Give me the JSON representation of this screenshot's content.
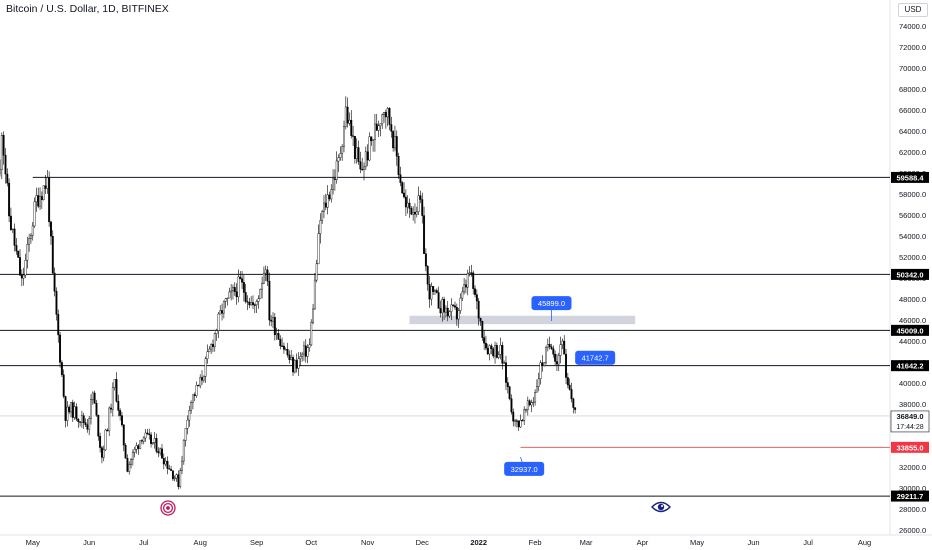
{
  "header": {
    "title": "Bitcoin / U.S. Dollar, 1D, BITFINEX",
    "currency": "USD"
  },
  "chart_data": {
    "type": "candlestick",
    "title": "Bitcoin / U.S. Dollar, 1D, BITFINEX",
    "y_unit": "USD",
    "ylim": [
      25500,
      76500
    ],
    "y_ticks": [
      "26000.0",
      "28000.0",
      "30000.0",
      "32000.0",
      "34000.0",
      "36000.0",
      "38000.0",
      "40000.0",
      "42000.0",
      "44000.0",
      "46000.0",
      "48000.0",
      "50000.0",
      "52000.0",
      "54000.0",
      "56000.0",
      "58000.0",
      "60000.0",
      "62000.0",
      "64000.0",
      "66000.0",
      "68000.0",
      "70000.0",
      "72000.0",
      "74000.0"
    ],
    "x_ticks": [
      {
        "label": "May",
        "date": "2021-05-01"
      },
      {
        "label": "Jun",
        "date": "2021-06-01"
      },
      {
        "label": "Jul",
        "date": "2021-07-01"
      },
      {
        "label": "Aug",
        "date": "2021-08-01"
      },
      {
        "label": "Sep",
        "date": "2021-09-01"
      },
      {
        "label": "Oct",
        "date": "2021-10-01"
      },
      {
        "label": "Nov",
        "date": "2021-11-01"
      },
      {
        "label": "Dec",
        "date": "2021-12-01"
      },
      {
        "label": "2022",
        "date": "2022-01-01",
        "bold": true
      },
      {
        "label": "Feb",
        "date": "2022-02-01"
      },
      {
        "label": "Mar",
        "date": "2022-03-01"
      },
      {
        "label": "Apr",
        "date": "2022-04-01"
      },
      {
        "label": "May",
        "date": "2022-05-01"
      },
      {
        "label": "Jun",
        "date": "2022-06-01"
      },
      {
        "label": "Jul",
        "date": "2022-07-01"
      },
      {
        "label": "Aug",
        "date": "2022-08-01"
      }
    ],
    "date_range": [
      "2021-04-13",
      "2022-08-15"
    ],
    "candles_range": [
      "2021-04-13",
      "2022-02-23"
    ],
    "price_path": [
      {
        "date": "2021-04-13",
        "price": 60000
      },
      {
        "date": "2021-04-14",
        "price": 64500
      },
      {
        "date": "2021-04-18",
        "price": 56000
      },
      {
        "date": "2021-04-25",
        "price": 49500
      },
      {
        "date": "2021-05-03",
        "price": 57500
      },
      {
        "date": "2021-05-09",
        "price": 59200
      },
      {
        "date": "2021-05-12",
        "price": 50000
      },
      {
        "date": "2021-05-19",
        "price": 37000
      },
      {
        "date": "2021-05-22",
        "price": 37500
      },
      {
        "date": "2021-05-31",
        "price": 36000
      },
      {
        "date": "2021-06-03",
        "price": 39000
      },
      {
        "date": "2021-06-08",
        "price": 33000
      },
      {
        "date": "2021-06-15",
        "price": 40000
      },
      {
        "date": "2021-06-22",
        "price": 32000
      },
      {
        "date": "2021-06-30",
        "price": 35000
      },
      {
        "date": "2021-07-08",
        "price": 34000
      },
      {
        "date": "2021-07-20",
        "price": 30500
      },
      {
        "date": "2021-07-26",
        "price": 38000
      },
      {
        "date": "2021-08-01",
        "price": 40000
      },
      {
        "date": "2021-08-13",
        "price": 47000
      },
      {
        "date": "2021-08-23",
        "price": 49500
      },
      {
        "date": "2021-08-31",
        "price": 47000
      },
      {
        "date": "2021-09-06",
        "price": 51500
      },
      {
        "date": "2021-09-08",
        "price": 46500
      },
      {
        "date": "2021-09-21",
        "price": 41500
      },
      {
        "date": "2021-09-30",
        "price": 43500
      },
      {
        "date": "2021-10-06",
        "price": 55500
      },
      {
        "date": "2021-10-16",
        "price": 61000
      },
      {
        "date": "2021-10-20",
        "price": 66000
      },
      {
        "date": "2021-10-28",
        "price": 60000
      },
      {
        "date": "2021-11-10",
        "price": 66500
      },
      {
        "date": "2021-11-14",
        "price": 64500
      },
      {
        "date": "2021-11-22",
        "price": 56500
      },
      {
        "date": "2021-11-30",
        "price": 57000
      },
      {
        "date": "2021-12-04",
        "price": 49000
      },
      {
        "date": "2021-12-13",
        "price": 47000
      },
      {
        "date": "2021-12-20",
        "price": 46500
      },
      {
        "date": "2021-12-27",
        "price": 50500
      },
      {
        "date": "2022-01-05",
        "price": 43500
      },
      {
        "date": "2022-01-13",
        "price": 43000
      },
      {
        "date": "2022-01-21",
        "price": 36000
      },
      {
        "date": "2022-01-24",
        "price": 36500
      },
      {
        "date": "2022-01-31",
        "price": 38500
      },
      {
        "date": "2022-02-04",
        "price": 41500
      },
      {
        "date": "2022-02-10",
        "price": 44000
      },
      {
        "date": "2022-02-13",
        "price": 42000
      },
      {
        "date": "2022-02-16",
        "price": 44500
      },
      {
        "date": "2022-02-18",
        "price": 40000
      },
      {
        "date": "2022-02-23",
        "price": 37500
      }
    ],
    "levels": [
      {
        "price": 59588.4,
        "label": "59588.4",
        "color": "#131722",
        "start_date": "2021-05-01"
      },
      {
        "price": 50342.0,
        "label": "50342.0",
        "color": "#131722",
        "start_date": "2021-04-13"
      },
      {
        "price": 45009.0,
        "label": "45009.0",
        "color": "#131722",
        "start_date": "2021-04-13"
      },
      {
        "price": 41642.2,
        "label": "41642.2",
        "color": "#131722",
        "start_date": "2021-04-13"
      },
      {
        "price": 29211.7,
        "label": "29211.7",
        "color": "#131722",
        "start_date": "2021-04-13"
      },
      {
        "price": 33855.0,
        "label": "33855.0",
        "color": "#e06666",
        "start_date": "2022-01-24",
        "label_bg": "#f23645"
      }
    ],
    "last_price": {
      "price": 36849.0,
      "label": "36849.0",
      "countdown": "17:44:28"
    },
    "zone": {
      "start_date": "2021-11-24",
      "end_date": "2022-03-28",
      "low": 45600,
      "high": 46400,
      "color": "#d1d4dc"
    },
    "annotations": [
      {
        "text": "45899.0",
        "date": "2022-02-10",
        "price": 47600,
        "point_date": "2022-02-10",
        "point_price": 45899
      },
      {
        "text": "41742.7",
        "date": "2022-03-06",
        "price": 42400,
        "point_date": "2022-02-25",
        "point_price": 41742.7
      },
      {
        "text": "32937.0",
        "date": "2022-01-26",
        "price": 31800,
        "point_date": "2022-01-24",
        "point_price": 32937
      }
    ],
    "icons": [
      "target-icon",
      "eye-icon"
    ]
  },
  "colors": {
    "up_candle": "#ffffff",
    "down_candle": "#000000",
    "axis_text": "#131722",
    "annotation_bg": "#2962ff",
    "level_label_bg": "#000000",
    "target_red": "#c2185b"
  }
}
